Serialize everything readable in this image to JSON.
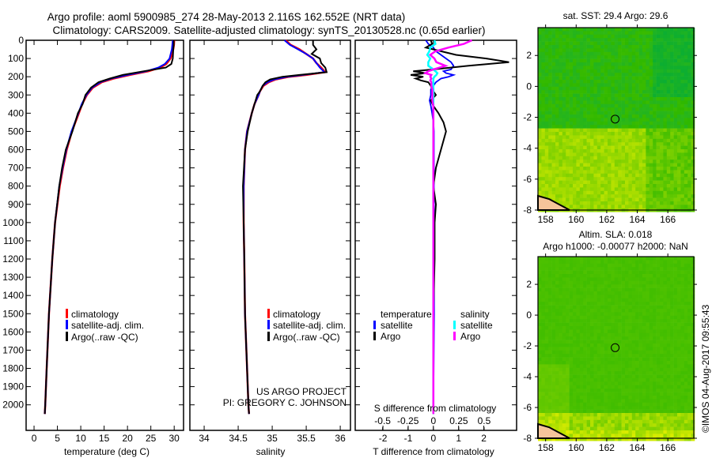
{
  "title": {
    "line1": "Argo profile: aoml 5900985_274 28-May-2013 2.116S 162.552E (NRT data)",
    "line2": "Climatology: CARS2009. Satellite-adjusted climatology: synTS_20130528.nc (0.65d earlier)"
  },
  "colors": {
    "climatology": "#ff0000",
    "satellite": "#0000ff",
    "argo": "#000000",
    "sal_satellite": "#00ffff",
    "sal_argo": "#ff00ff"
  },
  "chart_data": [
    {
      "type": "line",
      "name": "temperature-profile",
      "xlabel": "temperature (deg C)",
      "ylabel": "depth",
      "xlim": [
        -1.7,
        32
      ],
      "ylim": [
        2140,
        0
      ],
      "xticks": [
        0,
        5,
        10,
        15,
        20,
        25,
        30
      ],
      "yticks": [
        0,
        100,
        200,
        300,
        400,
        500,
        600,
        700,
        800,
        900,
        1000,
        1100,
        1200,
        1300,
        1400,
        1500,
        1600,
        1700,
        1800,
        1900,
        2000
      ],
      "legend": {
        "position": "bottom-center",
        "entries": [
          "climatology",
          "satellite-adj. clim.",
          "Argo(..raw -QC)"
        ]
      },
      "depth": [
        0,
        25,
        50,
        100,
        130,
        150,
        170,
        190,
        210,
        230,
        260,
        300,
        350,
        400,
        500,
        600,
        700,
        800,
        1000,
        1200,
        1500,
        1800,
        2000,
        2050
      ],
      "series": [
        {
          "name": "climatology",
          "color": "#ff0000",
          "values": [
            30,
            29.95,
            29.8,
            29.2,
            28.3,
            27,
            24.5,
            20.5,
            17,
            14.5,
            12.6,
            11.3,
            10.3,
            9.6,
            8.1,
            7,
            6.2,
            5.5,
            4.5,
            3.9,
            3.2,
            2.7,
            2.4,
            2.3
          ]
        },
        {
          "name": "satellite-adj. clim.",
          "color": "#0000ff",
          "values": [
            29.7,
            29.6,
            29.5,
            29.0,
            28.0,
            26.6,
            24,
            20,
            16.5,
            14.2,
            12.4,
            11.2,
            10.2,
            9.5,
            8.0,
            6.9,
            6.1,
            5.4,
            4.5,
            3.9,
            3.2,
            2.7,
            2.4,
            2.3
          ]
        },
        {
          "name": "Argo(..raw -QC)",
          "color": "#000000",
          "values": [
            29.9,
            29.9,
            29.8,
            29.7,
            29.4,
            28.2,
            23.5,
            19,
            16.2,
            13.8,
            12.2,
            11.0,
            10.4,
            9.4,
            8.2,
            6.8,
            6.0,
            5.4,
            4.5,
            3.9,
            3.2,
            2.7,
            2.4,
            2.3
          ]
        }
      ]
    },
    {
      "type": "line",
      "name": "salinity-profile",
      "xlabel": "salinity",
      "xlim": [
        33.79,
        36.15
      ],
      "ylim": [
        2140,
        0
      ],
      "xticks": [
        34,
        34.5,
        35,
        35.5,
        36
      ],
      "xticklabels": [
        "34",
        "34.5",
        "35",
        "35.5",
        "36"
      ],
      "legend": {
        "position": "bottom-center",
        "entries": [
          "climatology",
          "satellite-adj. clim.",
          "Argo(..raw -QC)"
        ]
      },
      "depth": [
        0,
        25,
        50,
        75,
        100,
        125,
        150,
        175,
        190,
        200,
        215,
        230,
        250,
        280,
        300,
        350,
        400,
        500,
        600,
        800,
        1000,
        1200,
        1500,
        1800,
        2000,
        2050
      ],
      "series": [
        {
          "name": "climatology",
          "color": "#ff0000",
          "values": [
            35.2,
            35.27,
            35.4,
            35.5,
            35.6,
            35.65,
            35.72,
            35.78,
            35.5,
            35.25,
            35.05,
            34.95,
            34.87,
            34.82,
            34.8,
            34.74,
            34.7,
            34.63,
            34.6,
            34.58,
            34.58,
            34.59,
            34.6,
            34.63,
            34.65,
            34.66
          ]
        },
        {
          "name": "satellite-adj. clim.",
          "color": "#0000ff",
          "values": [
            35.18,
            35.26,
            35.38,
            35.5,
            35.6,
            35.65,
            35.7,
            35.77,
            35.45,
            35.22,
            35.03,
            34.93,
            34.86,
            34.82,
            34.8,
            34.74,
            34.7,
            34.63,
            34.6,
            34.58,
            34.58,
            34.59,
            34.6,
            34.63,
            34.65,
            34.66
          ]
        },
        {
          "name": "Argo(..raw -QC)",
          "color": "#000000",
          "values": [
            35.6,
            35.6,
            35.65,
            35.58,
            35.7,
            35.72,
            35.78,
            35.8,
            35.4,
            35.15,
            34.97,
            34.9,
            34.86,
            34.82,
            34.78,
            34.74,
            34.7,
            34.64,
            34.6,
            34.57,
            34.58,
            34.59,
            34.6,
            34.63,
            34.65,
            34.66
          ]
        }
      ]
    },
    {
      "type": "line",
      "name": "difference-profile",
      "xlabel": "T difference from climatology",
      "x2label": "S difference from climatology",
      "xlim": [
        -3.1,
        3.3
      ],
      "x2lim": [
        -0.77,
        0.82
      ],
      "ylim": [
        2140,
        0
      ],
      "xticks": [
        -2,
        -1,
        0,
        1,
        2
      ],
      "x2ticks": [
        -0.5,
        -0.25,
        0,
        0.25,
        0.5
      ],
      "x2ticklabels": [
        "-0.5",
        "-0.25",
        "0",
        "0.25",
        "0.5"
      ],
      "legend": {
        "position": "bottom-center",
        "groups": [
          {
            "title": "temperature",
            "entries": [
              "satellite",
              "Argo"
            ]
          },
          {
            "title": "salinity",
            "entries": [
              "satellite",
              "Argo"
            ]
          }
        ]
      },
      "depth": [
        0,
        20,
        40,
        60,
        80,
        100,
        120,
        140,
        160,
        170,
        180,
        190,
        200,
        210,
        220,
        230,
        250,
        270,
        300,
        330,
        360,
        400,
        450,
        500,
        550,
        600,
        650,
        700,
        750,
        800,
        900,
        1000,
        1200,
        1500,
        2000,
        2050
      ],
      "series": [
        {
          "name": "T satellite",
          "color": "#0000ff",
          "values": [
            -0.3,
            -0.2,
            0.0,
            0.1,
            0.3,
            0.5,
            0.7,
            0.8,
            0.7,
            0.4,
            0.5,
            0.8,
            0.6,
            0.3,
            0.2,
            0.1,
            0.0,
            -0.1,
            -0.1,
            -0.15,
            -0.1,
            -0.05,
            0.0,
            0.02,
            0.02,
            0.02,
            0.02,
            0.02,
            0.02,
            0.02,
            0.02,
            0.02,
            0.02,
            0.03,
            0.0,
            0.0
          ]
        },
        {
          "name": "T Argo",
          "color": "#000000",
          "values": [
            -0.1,
            -0.05,
            -0.3,
            0.3,
            0.9,
            2.1,
            3.0,
            1.4,
            0.0,
            -0.8,
            -0.3,
            -0.9,
            -0.4,
            -0.7,
            -0.5,
            -0.2,
            -0.1,
            -0.05,
            0.1,
            -0.1,
            0.0,
            0.2,
            0.4,
            0.5,
            0.4,
            0.3,
            0.2,
            0.1,
            0.05,
            0.0,
            0.1,
            0.05,
            0.05,
            0.0,
            0.0,
            0.0
          ]
        },
        {
          "name": "S satellite",
          "color": "#00ffff",
          "values": [
            0.01,
            0.02,
            -0.03,
            -0.04,
            -0.06,
            -0.03,
            -0.05,
            -0.05,
            0.0,
            0.02,
            0.04,
            0.03,
            0.01,
            0.0,
            0.0,
            0.0,
            0.0,
            0.0,
            0.0,
            0.0,
            0.0,
            0.0,
            0.0,
            0.0,
            0.0,
            0.0,
            0.0,
            0.0,
            0.0,
            0.0,
            0.0,
            0.0,
            0.0,
            0.0,
            0.0,
            0.0
          ]
        },
        {
          "name": "S Argo",
          "color": "#ff00ff",
          "values": [
            0.38,
            0.3,
            0.15,
            0.02,
            -0.03,
            0.01,
            0.03,
            0.12,
            0.0,
            -0.05,
            -0.08,
            -0.02,
            -0.03,
            -0.02,
            -0.03,
            -0.02,
            -0.02,
            -0.01,
            -0.01,
            -0.01,
            0.0,
            0.0,
            0.0,
            0.0,
            0.0,
            0.0,
            0.0,
            0.0,
            0.0,
            0.0,
            0.0,
            0.0,
            0.0,
            0.0,
            0.0,
            0.0
          ]
        }
      ]
    },
    {
      "type": "heatmap",
      "name": "sst-map",
      "title": "sat. SST: 29.4 Argo: 29.6",
      "xlim": [
        157.5,
        167.7
      ],
      "ylim": [
        -8,
        3.8
      ],
      "xticks": [
        158,
        160,
        162,
        164,
        166
      ],
      "yticks": [
        2,
        0,
        -2,
        -4,
        -6,
        -8
      ],
      "marker": {
        "lon": 162.552,
        "lat": -2.116
      }
    },
    {
      "type": "heatmap",
      "name": "sla-map",
      "title": "Altim. SLA: 0.018",
      "subtitle": "Argo h1000: -0.00077 h2000: NaN",
      "xlim": [
        157.5,
        167.7
      ],
      "ylim": [
        -8,
        3.8
      ],
      "xticks": [
        158,
        160,
        162,
        164,
        166
      ],
      "yticks": [
        2,
        0,
        -2,
        -4,
        -6,
        -8
      ],
      "marker": {
        "lon": 162.552,
        "lat": -2.116
      }
    }
  ],
  "legend_text": {
    "clim": "climatology",
    "sat": "satellite-adj. clim.",
    "argo": "Argo(..raw -QC)",
    "temperature": "temperature",
    "salinity": "salinity",
    "satellite": "satellite",
    "argo_short": "Argo"
  },
  "project": {
    "line1": "US ARGO PROJECT",
    "line2": "PI: GREGORY C. JOHNSON"
  },
  "stamp": "©IMOS 04-Aug-2017 09:55:43"
}
